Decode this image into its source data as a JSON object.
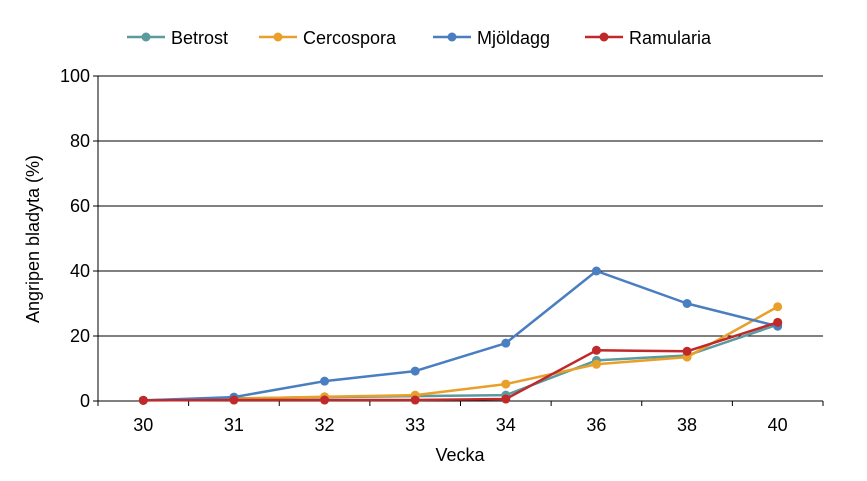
{
  "chart_data": {
    "type": "line",
    "title": "",
    "xlabel": "Vecka",
    "ylabel": "Angripen bladyta (%)",
    "categories": [
      "30",
      "31",
      "32",
      "33",
      "34",
      "36",
      "38",
      "40"
    ],
    "ylim": [
      0,
      100
    ],
    "yticks": [
      0,
      20,
      40,
      60,
      80,
      100
    ],
    "grid": "horizontal",
    "legend_position": "top",
    "series": [
      {
        "name": "Betrost",
        "color": "#5B9A9E",
        "values": [
          0.2,
          0.8,
          1.2,
          1.5,
          1.8,
          12.5,
          14,
          23.5
        ]
      },
      {
        "name": "Cercospora",
        "color": "#E8A02A",
        "values": [
          0.2,
          0.7,
          1.3,
          1.8,
          5.2,
          11.3,
          13.5,
          29
        ]
      },
      {
        "name": "Mjöldagg",
        "color": "#4A7EC0",
        "values": [
          0.2,
          1.2,
          6.1,
          9.2,
          17.8,
          40,
          30,
          23
        ]
      },
      {
        "name": "Ramularia",
        "color": "#C0282A",
        "values": [
          0.2,
          0.3,
          0.3,
          0.3,
          0.6,
          15.6,
          15.3,
          24.2
        ]
      }
    ]
  }
}
